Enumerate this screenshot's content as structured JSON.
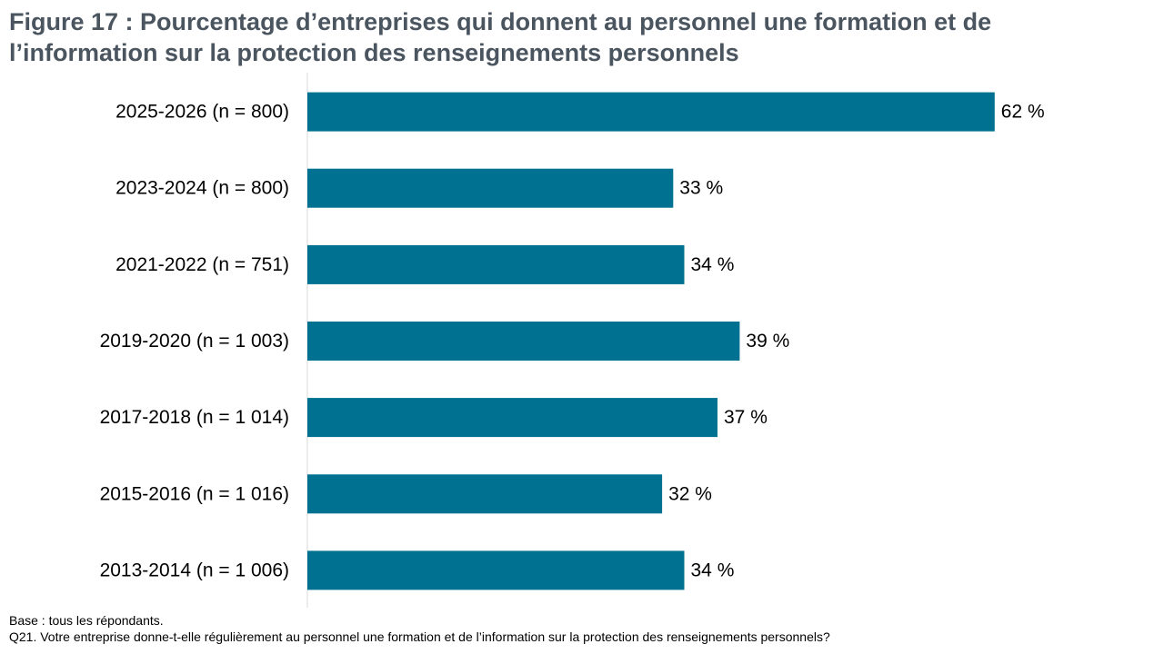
{
  "chart_data": {
    "type": "bar",
    "orientation": "horizontal",
    "title": "Figure 17 : Pourcentage d’entreprises qui donnent au personnel une formation et de l’information sur la protection des renseignements personnels",
    "categories": [
      "2025-2026 (n = 800)",
      "2023-2024 (n = 800)",
      "2021-2022 (n = 751)",
      "2019-2020 (n = 1 003)",
      "2017-2018 (n = 1 014)",
      "2015-2016 (n = 1 016)",
      "2013-2014 (n = 1 006)"
    ],
    "values": [
      62,
      33,
      34,
      39,
      37,
      32,
      34
    ],
    "value_labels": [
      "62 %",
      "33 %",
      "34 %",
      "39 %",
      "37 %",
      "32 %",
      "34 %"
    ],
    "unit": "%",
    "xlim": [
      0,
      100
    ],
    "bar_color": "#007191",
    "grid": false,
    "legend": "none"
  },
  "footnotes": {
    "base": "Base : tous les répondants.",
    "question": "Q21. Votre entreprise donne-t-elle régulièrement au personnel une formation et de l’information sur la protection des renseignements personnels?"
  }
}
